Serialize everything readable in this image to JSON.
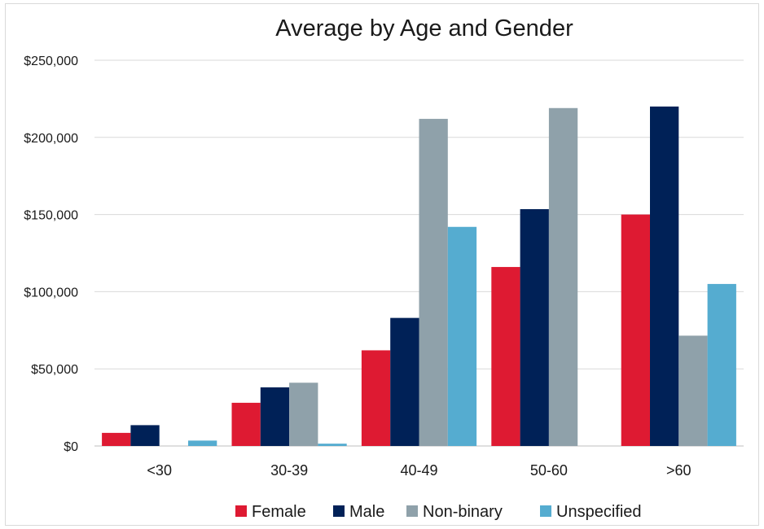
{
  "chart_data": {
    "type": "bar",
    "title": "Average by Age and Gender",
    "categories": [
      "<30",
      "30-39",
      "40-49",
      "50-60",
      ">60"
    ],
    "series": [
      {
        "name": "Female",
        "color": "#de1a32",
        "values": [
          8500,
          28000,
          62000,
          116000,
          150000
        ]
      },
      {
        "name": "Male",
        "color": "#002157",
        "values": [
          13500,
          38000,
          83000,
          153500,
          220000
        ]
      },
      {
        "name": "Non-binary",
        "color": "#8fa1aa",
        "values": [
          0,
          41000,
          212000,
          219000,
          71500
        ]
      },
      {
        "name": "Unspecified",
        "color": "#55acd0",
        "values": [
          3500,
          1500,
          142000,
          0,
          105000
        ]
      }
    ],
    "ylim": [
      0,
      250000
    ],
    "yticks": [
      0,
      50000,
      100000,
      150000,
      200000,
      250000
    ],
    "ytick_labels": [
      "$0",
      "$50,000",
      "$100,000",
      "$150,000",
      "$200,000",
      "$250,000"
    ],
    "grid": true,
    "legend_position": "bottom"
  }
}
